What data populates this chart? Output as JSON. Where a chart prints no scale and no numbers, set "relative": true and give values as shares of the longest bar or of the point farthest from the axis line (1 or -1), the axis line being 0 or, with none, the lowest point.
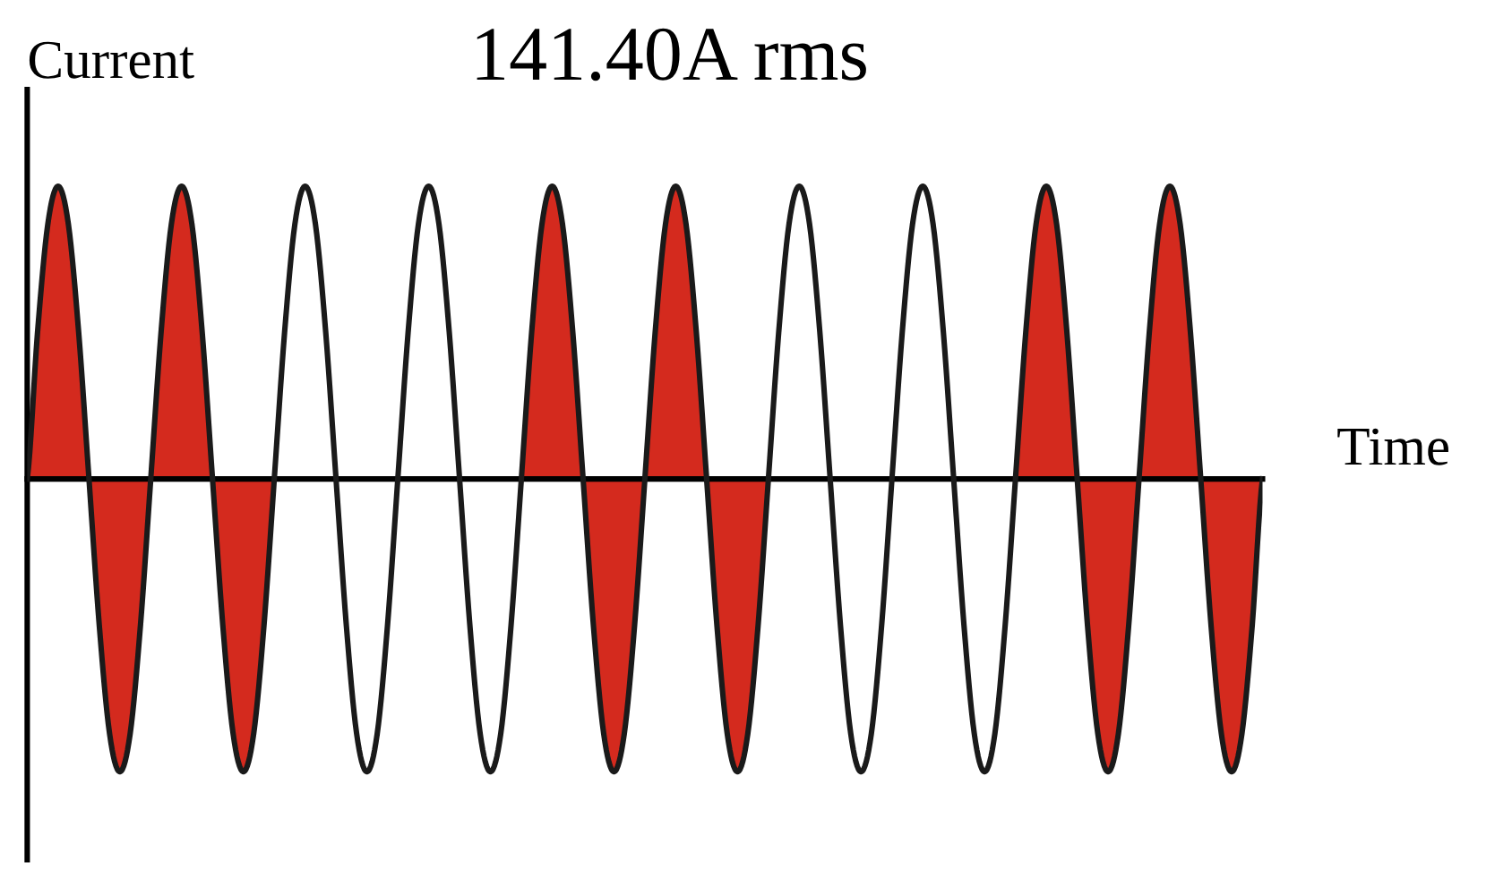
{
  "chart_data": {
    "type": "line",
    "title": "141.40A rms",
    "xlabel": "Time",
    "ylabel": "Current",
    "relative": true,
    "tick_labels": false,
    "categories": [
      null,
      null,
      null,
      null,
      null,
      null,
      null,
      null,
      null,
      null,
      null,
      null,
      null,
      null,
      null,
      null,
      null,
      null,
      null,
      null,
      null,
      null,
      null,
      null,
      null,
      null,
      null,
      null,
      null,
      null,
      null,
      null,
      null,
      null,
      null,
      null,
      null,
      null,
      null,
      null,
      null,
      null,
      null,
      null,
      null,
      null,
      null,
      null,
      null,
      null,
      null,
      null,
      null,
      null,
      null,
      null,
      null,
      null,
      null,
      null,
      null,
      null,
      null,
      null,
      null,
      null,
      null,
      null,
      null,
      null,
      null,
      null,
      null,
      null,
      null,
      null,
      null,
      null,
      null,
      null,
      null,
      null,
      null,
      null,
      null,
      null,
      null,
      null,
      null,
      null,
      null,
      null,
      null,
      null,
      null,
      null,
      null,
      null,
      null,
      null,
      null,
      null,
      null,
      null,
      null,
      null,
      null,
      null,
      null,
      null,
      null,
      null,
      null,
      null,
      null,
      null,
      null,
      null,
      null,
      null,
      null
    ],
    "series": [
      {
        "type": "area",
        "color": "#d42a1e",
        "values": [
          0,
          0.5,
          0.87,
          1,
          0.87,
          0.5,
          0,
          -0.5,
          -0.87,
          -1,
          -0.87,
          -0.5,
          0,
          0.5,
          0.87,
          1,
          0.87,
          0.5,
          0,
          -0.5,
          -0.87,
          -1,
          -0.87,
          -0.5,
          0,
          null,
          null,
          null,
          null,
          null,
          null,
          null,
          null,
          null,
          null,
          null,
          null,
          null,
          null,
          null,
          null,
          null,
          null,
          null,
          null,
          null,
          null,
          null,
          0,
          0.5,
          0.87,
          1,
          0.87,
          0.5,
          0,
          -0.5,
          -0.87,
          -1,
          -0.87,
          -0.5,
          0,
          0.5,
          0.87,
          1,
          0.87,
          0.5,
          0,
          -0.5,
          -0.87,
          -1,
          -0.87,
          -0.5,
          0,
          null,
          null,
          null,
          null,
          null,
          null,
          null,
          null,
          null,
          null,
          null,
          null,
          null,
          null,
          null,
          null,
          null,
          null,
          null,
          null,
          null,
          null,
          null,
          0,
          0.5,
          0.87,
          1,
          0.87,
          0.5,
          0,
          -0.5,
          -0.87,
          -1,
          -0.87,
          -0.5,
          0,
          0.5,
          0.87,
          1,
          0.87,
          0.5,
          0,
          -0.5,
          -0.87,
          -1,
          -0.87,
          -0.5,
          0
        ]
      },
      {
        "color": "#1a1a1a",
        "values": [
          0,
          0.5,
          0.87,
          1,
          0.87,
          0.5,
          0,
          -0.5,
          -0.87,
          -1,
          -0.87,
          -0.5,
          0,
          0.5,
          0.87,
          1,
          0.87,
          0.5,
          0,
          -0.5,
          -0.87,
          -1,
          -0.87,
          -0.5,
          0,
          0.5,
          0.87,
          1,
          0.87,
          0.5,
          0,
          -0.5,
          -0.87,
          -1,
          -0.87,
          -0.5,
          0,
          0.5,
          0.87,
          1,
          0.87,
          0.5,
          0,
          -0.5,
          -0.87,
          -1,
          -0.87,
          -0.5,
          0,
          0.5,
          0.87,
          1,
          0.87,
          0.5,
          0,
          -0.5,
          -0.87,
          -1,
          -0.87,
          -0.5,
          0,
          0.5,
          0.87,
          1,
          0.87,
          0.5,
          0,
          -0.5,
          -0.87,
          -1,
          -0.87,
          -0.5,
          0,
          0.5,
          0.87,
          1,
          0.87,
          0.5,
          0,
          -0.5,
          -0.87,
          -1,
          -0.87,
          -0.5,
          0,
          0.5,
          0.87,
          1,
          0.87,
          0.5,
          0,
          -0.5,
          -0.87,
          -1,
          -0.87,
          -0.5,
          0,
          0.5,
          0.87,
          1,
          0.87,
          0.5,
          0,
          -0.5,
          -0.87,
          -1,
          -0.87,
          -0.5,
          0,
          0.5,
          0.87,
          1,
          0.87,
          0.5,
          0,
          -0.5,
          -0.87,
          -1,
          -0.87,
          -0.5,
          0
        ]
      }
    ]
  }
}
